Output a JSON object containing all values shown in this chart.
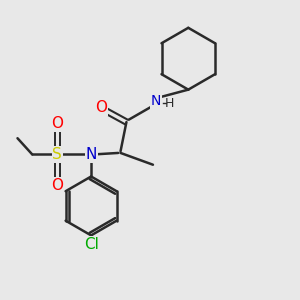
{
  "background_color": "#e8e8e8",
  "bond_color": "#2a2a2a",
  "bond_width": 1.8,
  "atom_colors": {
    "O": "#ff0000",
    "N": "#0000cc",
    "S": "#cccc00",
    "Cl": "#00aa00",
    "C": "#2a2a2a",
    "H": "#2a2a2a"
  },
  "font_size": 10,
  "figsize": [
    3.0,
    3.0
  ],
  "dpi": 100,
  "xlim": [
    0,
    10
  ],
  "ylim": [
    0,
    10
  ]
}
